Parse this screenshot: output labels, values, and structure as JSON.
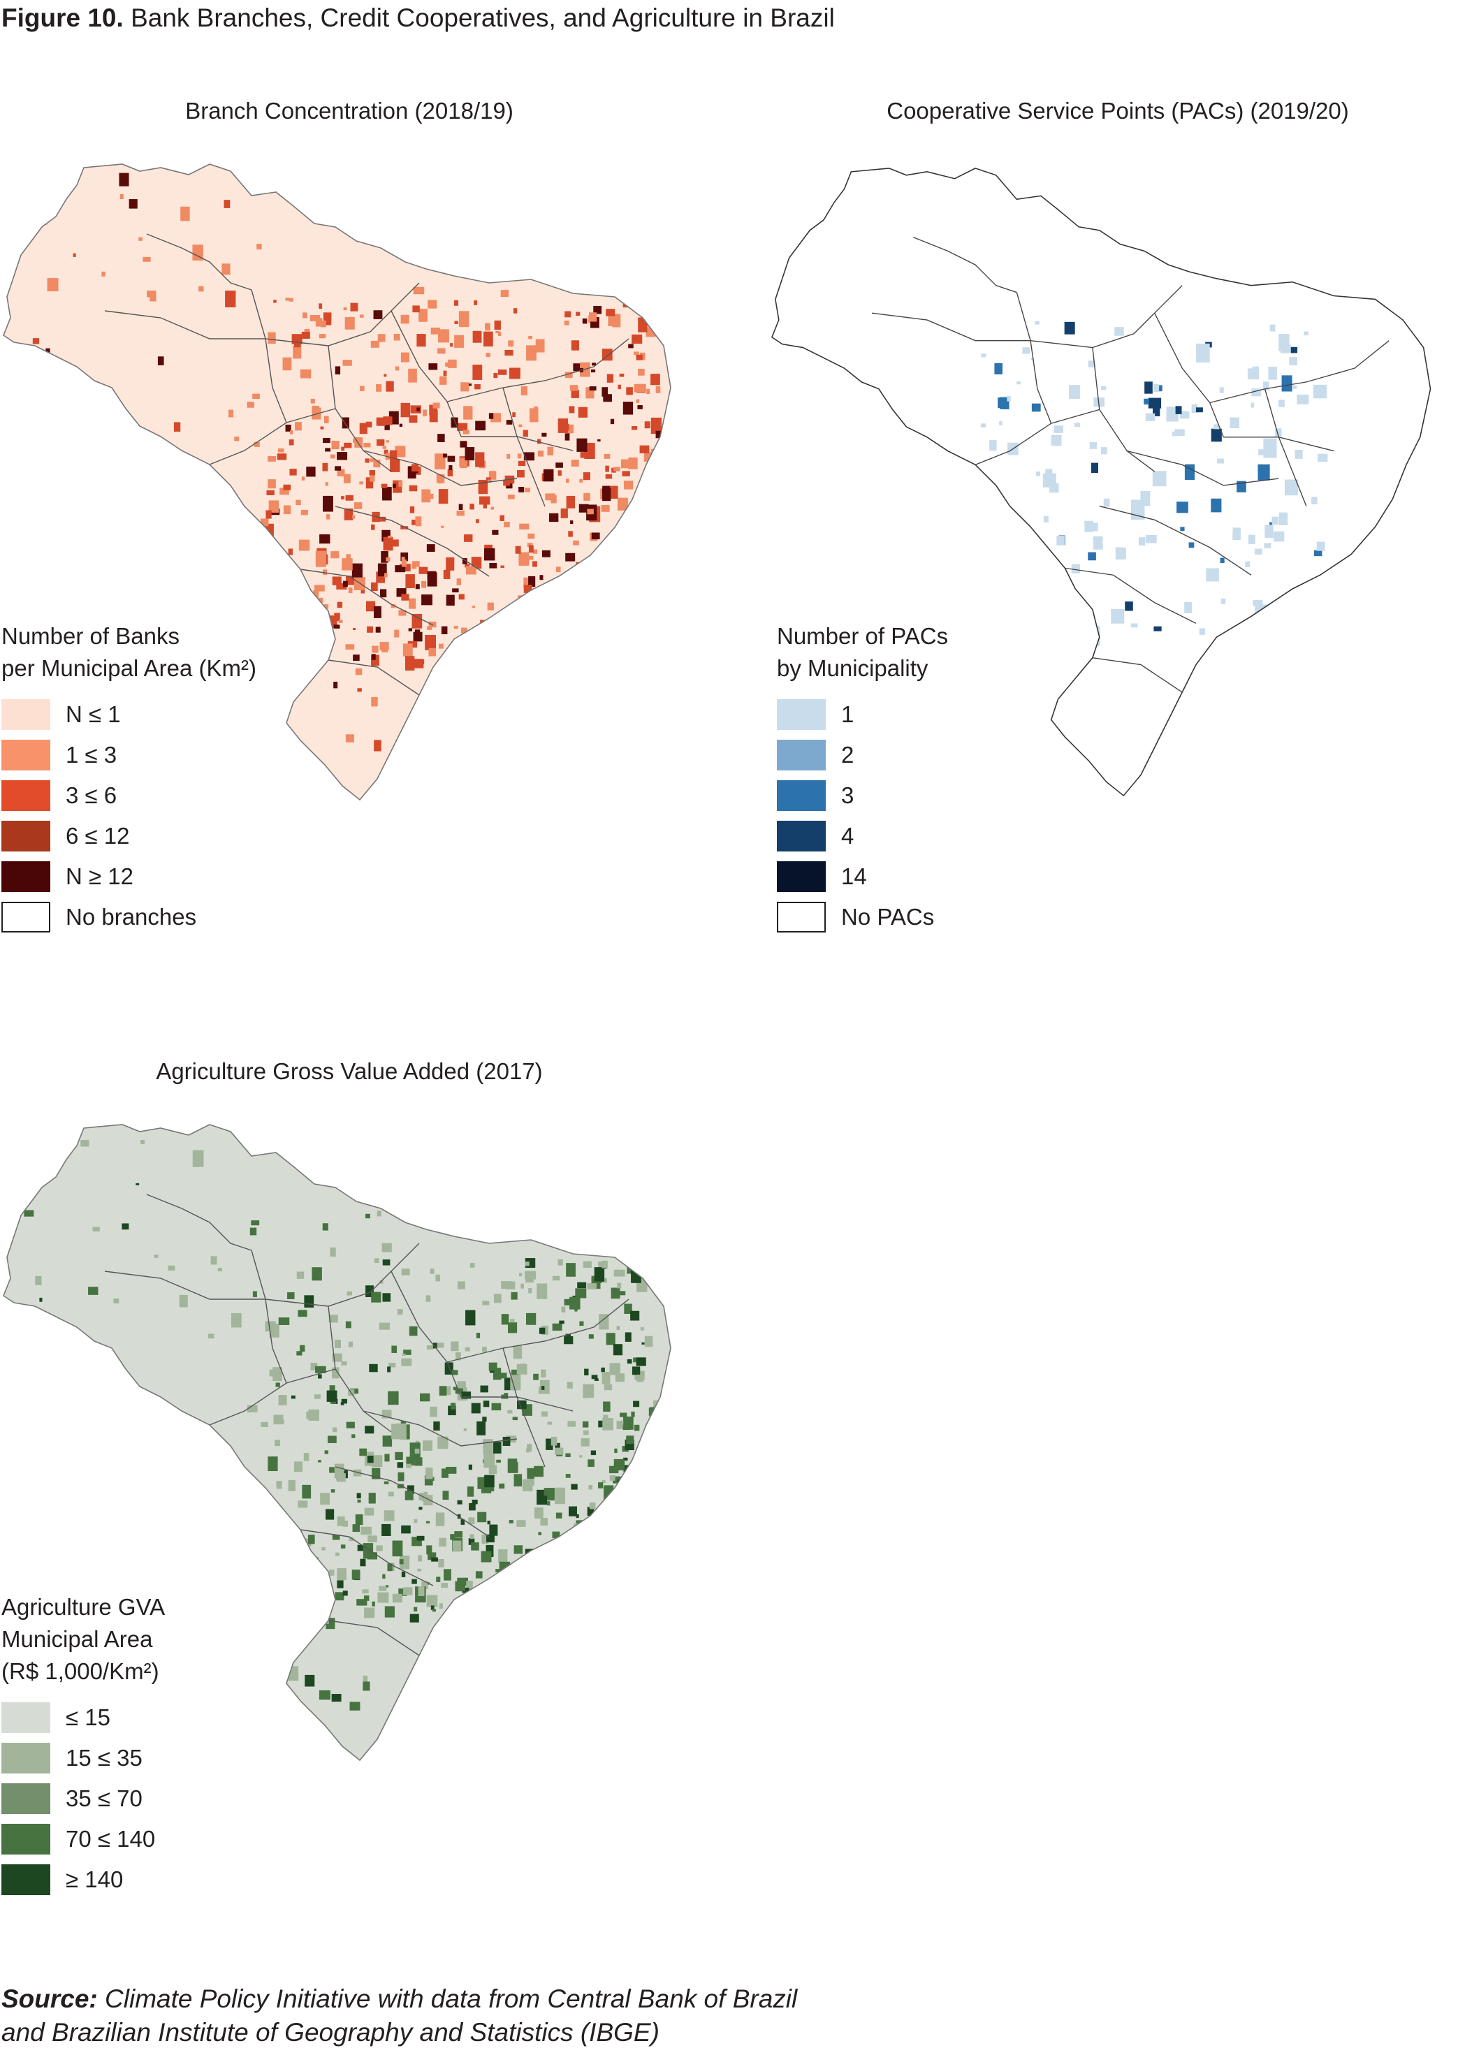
{
  "figure": {
    "label": "Figure 10.",
    "title": "Bank Branches, Credit Cooperatives, and Agriculture in Brazil"
  },
  "panels": [
    {
      "title": "Branch Concentration (2018/19)",
      "legend_title": [
        "Number of Banks",
        "per Municipal Area (Km²)"
      ],
      "legend": [
        {
          "label": "N ≤ 1",
          "color": "#fde0d2"
        },
        {
          "label": "1 ≤ 3",
          "color": "#f7926a"
        },
        {
          "label": "3 ≤ 6",
          "color": "#e24c2a"
        },
        {
          "label": "6 ≤ 12",
          "color": "#a9381c"
        },
        {
          "label": "N ≥ 12",
          "color": "#4a0606"
        },
        {
          "label": "No branches",
          "color": "#ffffff"
        }
      ],
      "map_palette": {
        "base": "#fde6da",
        "mid": "#f08a63",
        "high": "#d4492a",
        "max": "#5a0a08"
      }
    },
    {
      "title": "Cooperative Service Points (PACs) (2019/20)",
      "legend_title": [
        "Number of PACs",
        "by Municipality"
      ],
      "legend": [
        {
          "label": "1",
          "color": "#c9dcec"
        },
        {
          "label": "2",
          "color": "#7ea9cf"
        },
        {
          "label": "3",
          "color": "#2c72ad"
        },
        {
          "label": "4",
          "color": "#143f6b"
        },
        {
          "label": "14",
          "color": "#07122b"
        },
        {
          "label": "No PACs",
          "color": "#ffffff"
        }
      ],
      "map_palette": {
        "base": "#ffffff",
        "mid": "#c9dcec",
        "high": "#2c72ad",
        "max": "#143f6b"
      }
    },
    {
      "title": "Agriculture Gross Value Added (2017)",
      "legend_title": [
        "Agriculture GVA",
        "Municipal Area",
        "(R$ 1,000/Km²)"
      ],
      "legend": [
        {
          "label": " ≤ 15",
          "color": "#d6dcd4"
        },
        {
          "label": "15 ≤ 35",
          "color": "#a2b59b"
        },
        {
          "label": "35 ≤ 70",
          "color": "#738f6b"
        },
        {
          "label": "70 ≤ 140",
          "color": "#46733f"
        },
        {
          "label": "≥ 140",
          "color": "#1c4720"
        }
      ],
      "map_palette": {
        "base": "#d6dcd4",
        "mid": "#a2b59b",
        "high": "#46733f",
        "max": "#1c4720"
      }
    }
  ],
  "source": {
    "label": "Source:",
    "text_line1": "Climate Policy Initiative with data from Central Bank of Brazil",
    "text_line2": "and Brazilian Institute of Geography and Statistics (IBGE)"
  }
}
